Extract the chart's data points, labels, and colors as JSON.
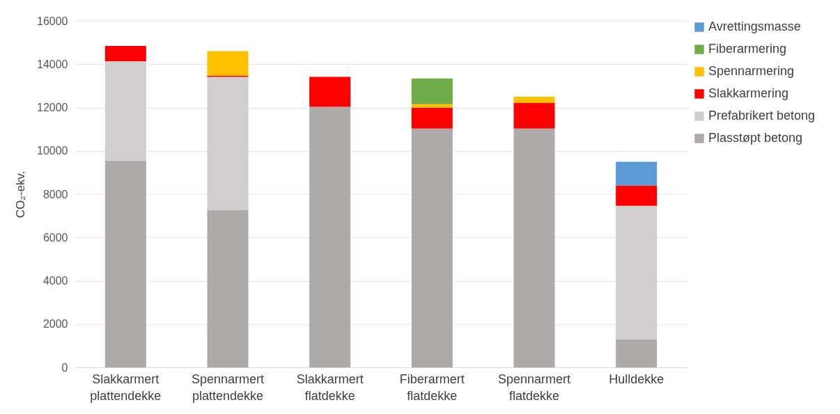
{
  "chart_data": {
    "type": "bar",
    "stacked": true,
    "ylabel": "CO₂-ekv.",
    "categories": [
      "Slakkarmert plattendekke",
      "Spennarmert plattendekke",
      "Slakkarmert flatdekke",
      "Fiberarmert flatdekke",
      "Spennarmert flatdekke",
      "Hulldekke"
    ],
    "series": [
      {
        "name": "Plasstøpt betong",
        "color": "#aeaaaa",
        "values": [
          9550,
          7260,
          12030,
          11030,
          11030,
          1300
        ]
      },
      {
        "name": "Prefabrikert betong",
        "color": "#d0cece",
        "values": [
          4590,
          6150,
          null,
          null,
          null,
          6160
        ]
      },
      {
        "name": "Slakkarmering",
        "color": "#ff0000",
        "values": [
          700,
          60,
          1380,
          960,
          1180,
          930
        ]
      },
      {
        "name": "Spennarmering",
        "color": "#ffc000",
        "values": [
          null,
          1130,
          null,
          160,
          290,
          null
        ]
      },
      {
        "name": "Fiberarmering",
        "color": "#70ad47",
        "values": [
          null,
          null,
          null,
          1190,
          null,
          null
        ]
      },
      {
        "name": "Avrettingsmasse",
        "color": "#5b9bd5",
        "values": [
          null,
          null,
          null,
          null,
          null,
          1100
        ]
      }
    ],
    "ylim": [
      0,
      16000
    ],
    "yticks": [
      0,
      2000,
      4000,
      6000,
      8000,
      10000,
      12000,
      14000,
      16000
    ],
    "grid": "y",
    "legend": "right"
  }
}
